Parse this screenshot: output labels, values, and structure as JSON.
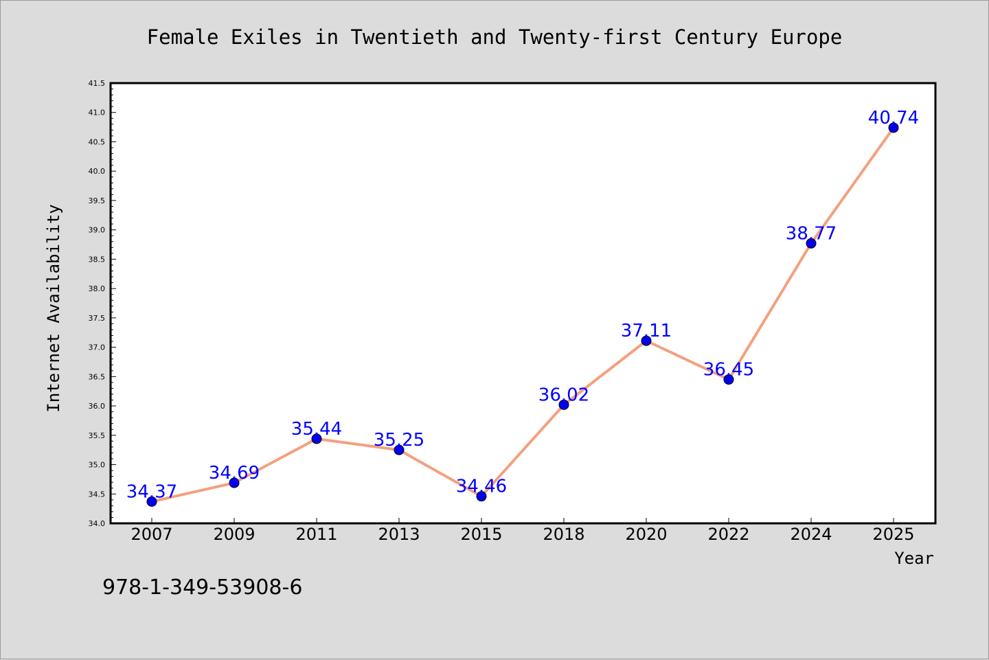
{
  "chart_data": {
    "type": "line",
    "title": "Female Exiles in Twentieth and Twenty-first Century Europe",
    "xlabel": "Year",
    "ylabel": "Internet Availability",
    "categories": [
      "2007",
      "2009",
      "2011",
      "2013",
      "2015",
      "2018",
      "2020",
      "2022",
      "2024",
      "2025"
    ],
    "values": [
      34.37,
      34.69,
      35.44,
      35.25,
      34.46,
      36.02,
      37.11,
      36.45,
      38.77,
      40.74
    ],
    "data_labels": [
      "34.37",
      "34.69",
      "35.44",
      "35.25",
      "34.46",
      "36.02",
      "37.11",
      "36.45",
      "38.77",
      "40.74"
    ],
    "ylim": [
      34.0,
      41.5
    ],
    "yticks": [
      "34.0",
      "34.5",
      "35.0",
      "35.5",
      "36.0",
      "36.5",
      "37.0",
      "37.5",
      "38.0",
      "38.5",
      "39.0",
      "39.5",
      "40.0",
      "40.5",
      "41.0",
      "41.5"
    ],
    "grid": false,
    "line_color": "#f4a07e",
    "marker_color": "#0000ee",
    "label_color": "#0000ff",
    "background": "#dcdcdc",
    "plot_background": "#ffffff"
  },
  "footer_text": "978-1-349-53908-6"
}
